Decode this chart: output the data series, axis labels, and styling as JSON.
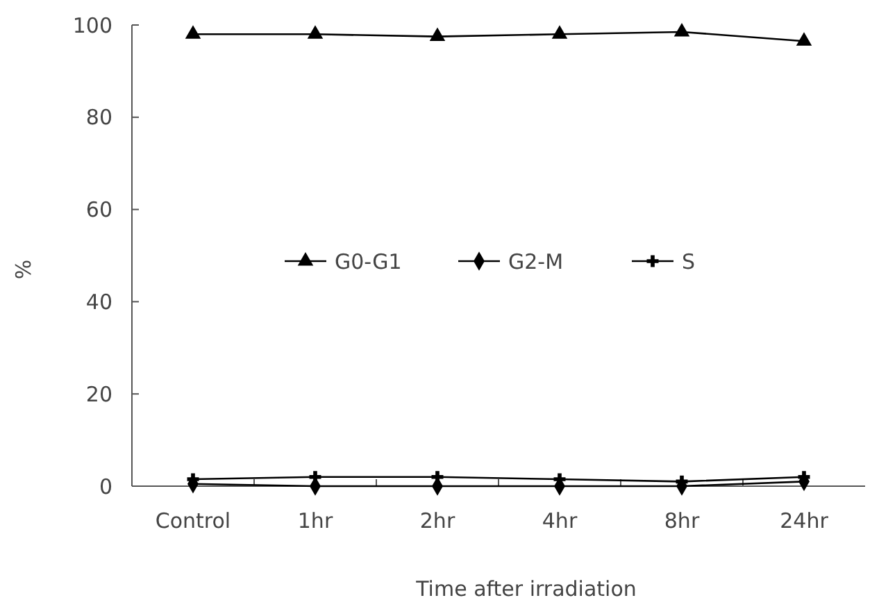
{
  "chart_data": {
    "type": "line",
    "xlabel": "Time after irradiation",
    "ylabel": "%",
    "categories": [
      "Control",
      "1hr",
      "2hr",
      "4hr",
      "8hr",
      "24hr"
    ],
    "ylim": [
      0,
      100
    ],
    "yticks": [
      0,
      20,
      40,
      60,
      80,
      100
    ],
    "grid": false,
    "legend": "center",
    "series": [
      {
        "name": "G0-G1",
        "color": "#000000",
        "marker": "triangle",
        "values": [
          98,
          98,
          97.5,
          98,
          98.5,
          96.5
        ]
      },
      {
        "name": "G2-M",
        "color": "#000000",
        "marker": "diamond",
        "values": [
          0.5,
          0,
          0,
          0,
          0,
          1
        ]
      },
      {
        "name": "S",
        "color": "#000000",
        "marker": "cross",
        "values": [
          1.5,
          2,
          2,
          1.5,
          1,
          2
        ]
      }
    ]
  }
}
